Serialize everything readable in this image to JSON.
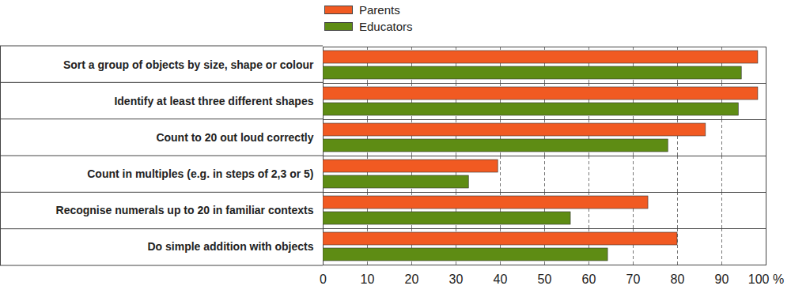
{
  "chart_data": {
    "type": "bar",
    "orientation": "horizontal",
    "categories": [
      "Sort a group of objects by size, shape or colour",
      "Identify at least three different shapes",
      "Count to 20 out loud correctly",
      "Count in multiples (e.g. in steps of 2,3 or 5)",
      "Recognise numerals up to 20 in familiar contexts",
      "Do simple addition with objects"
    ],
    "series": [
      {
        "name": "Parents",
        "color": "#f15a22",
        "values": [
          98.2,
          98.2,
          86.4,
          39.5,
          73.4,
          80.0
        ]
      },
      {
        "name": "Educators",
        "color": "#5e8c14",
        "values": [
          94.5,
          93.8,
          77.9,
          32.9,
          55.9,
          64.3
        ]
      }
    ],
    "xlim": [
      0,
      100
    ],
    "xticks": [
      0,
      10,
      20,
      30,
      40,
      50,
      60,
      70,
      80,
      90,
      {
        "value": 100,
        "label": "100 %"
      }
    ],
    "grid": true,
    "legend": "top"
  }
}
